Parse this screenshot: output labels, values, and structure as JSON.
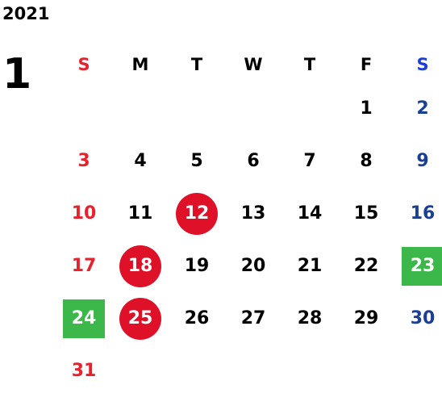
{
  "year": "2021",
  "month": "1",
  "weekdays": [
    {
      "label": "S",
      "type": "sun"
    },
    {
      "label": "M",
      "type": ""
    },
    {
      "label": "T",
      "type": ""
    },
    {
      "label": "W",
      "type": ""
    },
    {
      "label": "T",
      "type": ""
    },
    {
      "label": "F",
      "type": ""
    },
    {
      "label": "S",
      "type": "sat"
    }
  ],
  "weeks": [
    [
      null,
      null,
      null,
      null,
      null,
      {
        "d": "1"
      },
      {
        "d": "2"
      }
    ],
    [
      {
        "d": "3"
      },
      {
        "d": "4"
      },
      {
        "d": "5"
      },
      {
        "d": "6"
      },
      {
        "d": "7"
      },
      {
        "d": "8"
      },
      {
        "d": "9"
      }
    ],
    [
      {
        "d": "10"
      },
      {
        "d": "11"
      },
      {
        "d": "12",
        "mark": "circle"
      },
      {
        "d": "13"
      },
      {
        "d": "14"
      },
      {
        "d": "15"
      },
      {
        "d": "16"
      }
    ],
    [
      {
        "d": "17"
      },
      {
        "d": "18",
        "mark": "circle"
      },
      {
        "d": "19"
      },
      {
        "d": "20"
      },
      {
        "d": "21"
      },
      {
        "d": "22"
      },
      {
        "d": "23",
        "mark": "square"
      }
    ],
    [
      {
        "d": "24",
        "mark": "square"
      },
      {
        "d": "25",
        "mark": "circle"
      },
      {
        "d": "26"
      },
      {
        "d": "27"
      },
      {
        "d": "28"
      },
      {
        "d": "29"
      },
      {
        "d": "30"
      }
    ],
    [
      {
        "d": "31"
      },
      null,
      null,
      null,
      null,
      null,
      null
    ]
  ],
  "colors": {
    "sunday": "#e8222d",
    "saturday": "#1b3f93",
    "saturday_header": "#1d3fd9",
    "holiday_circle": "#de1129",
    "highlight_square": "#3cb84a"
  }
}
